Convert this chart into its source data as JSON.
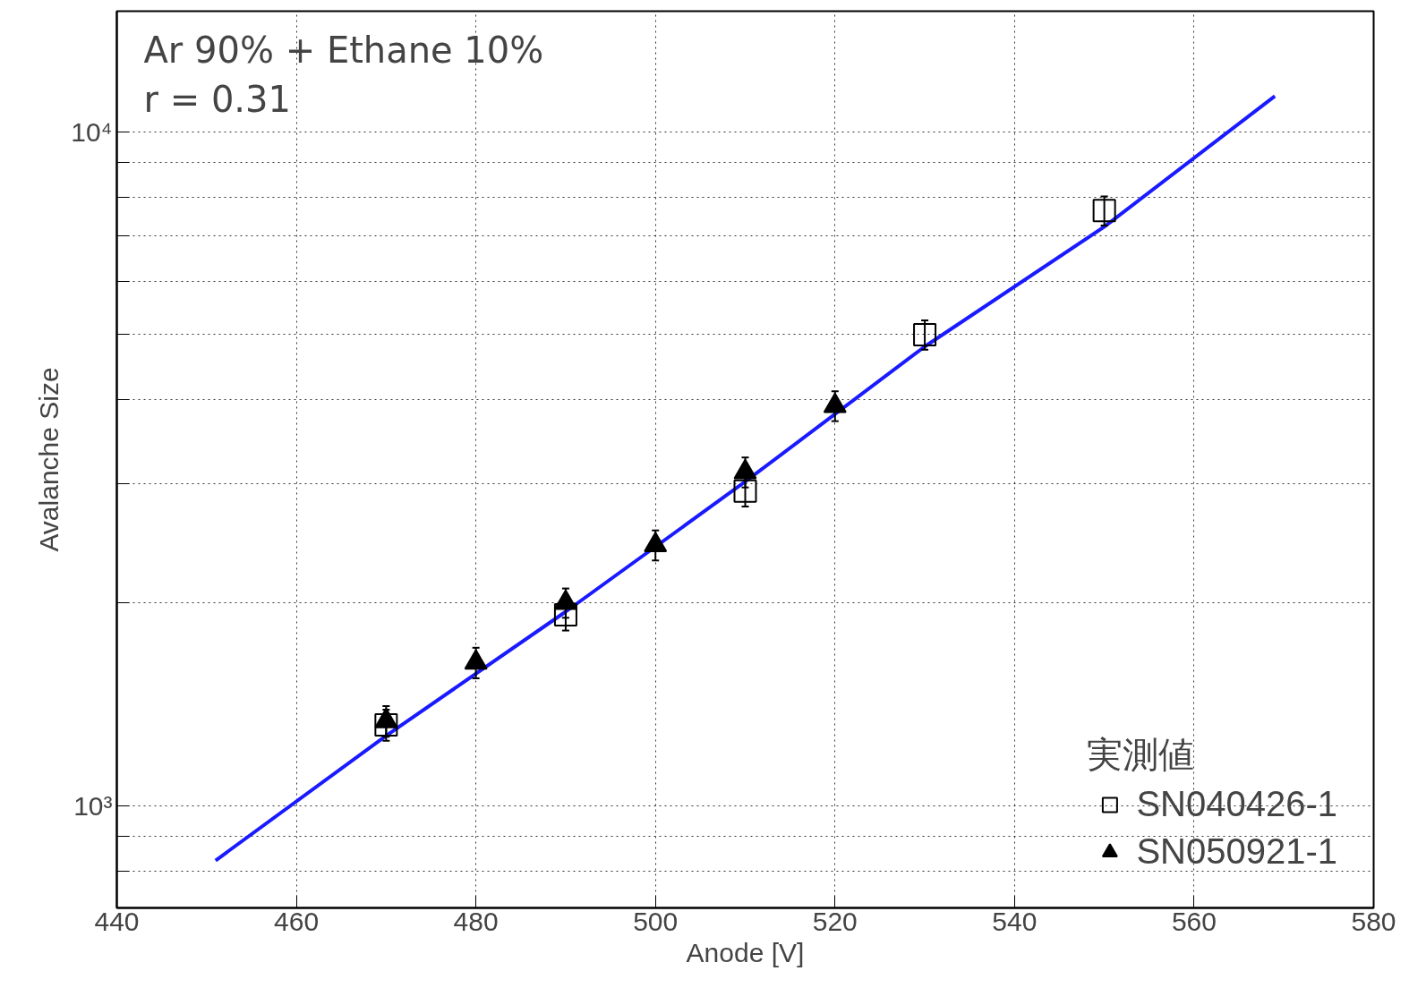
{
  "chart_data": {
    "type": "scatter",
    "xlabel": "Anode [V]",
    "ylabel": "Avalanche Size",
    "log": "y",
    "grid": true,
    "legend": "bottom right",
    "legend_title": "実測値",
    "xlim": [
      440,
      580
    ],
    "xticks": [
      440,
      460,
      480,
      500,
      520,
      540,
      560,
      580
    ],
    "ylim": [
      705,
      15100
    ],
    "yticks": [
      {
        "value": 800,
        "label": null
      },
      {
        "value": 900,
        "label": null
      },
      {
        "value": 1000,
        "label": "10³"
      },
      {
        "value": 2000,
        "label": null
      },
      {
        "value": 3000,
        "label": null
      },
      {
        "value": 4000,
        "label": null
      },
      {
        "value": 5000,
        "label": null
      },
      {
        "value": 6000,
        "label": null
      },
      {
        "value": 7000,
        "label": null
      },
      {
        "value": 8000,
        "label": null
      },
      {
        "value": 9000,
        "label": null
      },
      {
        "value": 10000,
        "label": "10⁴"
      }
    ],
    "annotations": [
      "Ar 90% + Ethane 10%",
      "r = 0.31"
    ],
    "series": [
      {
        "type": "line",
        "color": "#1a1aff",
        "x": [
          451,
          470,
          490,
          510,
          530,
          550,
          569
        ],
        "values": [
          829,
          1270,
          1940,
          3025,
          4800,
          7230,
          11300
        ]
      },
      {
        "name": "SN040426-1",
        "color": "#000000",
        "marker": "square",
        "x": [
          470,
          490,
          510,
          530,
          550
        ],
        "values": [
          1318,
          1919,
          2929,
          4999,
          7638
        ],
        "errors": [
          70,
          100,
          150,
          250,
          380
        ]
      },
      {
        "name": "SN050921-1",
        "color": "#000000",
        "marker": "triangle",
        "x": [
          470,
          480,
          490,
          500,
          510,
          520
        ],
        "values": [
          1335,
          1630,
          2000,
          2436,
          3126,
          3920
        ],
        "errors": [
          70,
          85,
          100,
          125,
          160,
          200
        ]
      }
    ]
  }
}
